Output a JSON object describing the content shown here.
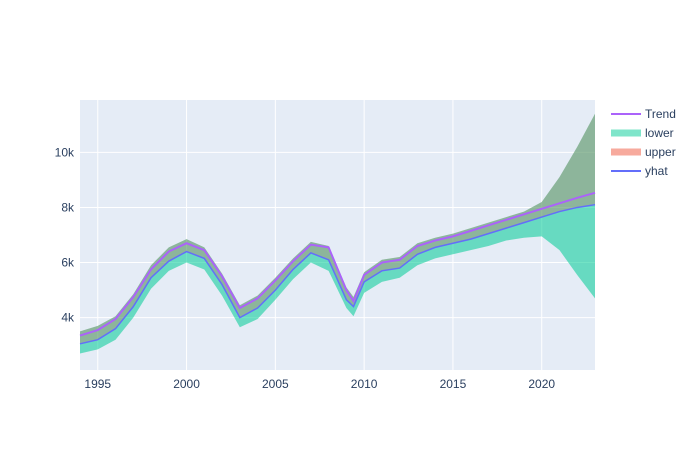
{
  "chart_data": {
    "type": "area",
    "title": "",
    "xlabel": "",
    "ylabel": "",
    "xlim": [
      1994,
      2023
    ],
    "ylim": [
      2100,
      11900
    ],
    "x_ticks": [
      1995,
      2000,
      2005,
      2010,
      2015,
      2020
    ],
    "x_tick_labels": [
      "1995",
      "2000",
      "2005",
      "2010",
      "2015",
      "2020"
    ],
    "y_ticks": [
      4000,
      6000,
      8000,
      10000
    ],
    "y_tick_labels": [
      "4k",
      "6k",
      "8k",
      "10k"
    ],
    "grid": true,
    "legend_position": "right",
    "x": [
      1994.0,
      1995.0,
      1996.0,
      1997.0,
      1998.0,
      1999.0,
      2000.0,
      2001.0,
      2002.0,
      2003.0,
      2004.0,
      2005.0,
      2006.0,
      2007.0,
      2008.0,
      2009.0,
      2009.4,
      2010.0,
      2011.0,
      2012.0,
      2013.0,
      2014.0,
      2015.0,
      2016.0,
      2017.0,
      2018.0,
      2019.0,
      2020.0,
      2021.0,
      2022.0,
      2023.0
    ],
    "series": [
      {
        "name": "Trend",
        "color": "#ab63fa",
        "values": [
          3350,
          3550,
          3950,
          4750,
          5750,
          6400,
          6700,
          6450,
          5500,
          4350,
          4700,
          5350,
          6050,
          6650,
          6550,
          5000,
          4600,
          5550,
          6000,
          6100,
          6600,
          6800,
          6950,
          7150,
          7350,
          7550,
          7750,
          7950,
          8150,
          8350,
          8530
        ]
      },
      {
        "name": "lower",
        "color": "#00cc96",
        "values": [
          2700,
          2850,
          3200,
          4000,
          5050,
          5700,
          6000,
          5750,
          4800,
          3650,
          3950,
          4650,
          5400,
          6000,
          5700,
          4350,
          4050,
          4900,
          5300,
          5450,
          5900,
          6150,
          6300,
          6450,
          6600,
          6800,
          6900,
          6950,
          6450,
          5550,
          4700
        ]
      },
      {
        "name": "upper",
        "color": "#ef553b",
        "values": [
          3500,
          3700,
          4050,
          4850,
          5900,
          6550,
          6850,
          6550,
          5600,
          4450,
          4800,
          5450,
          6150,
          6750,
          6600,
          5100,
          4750,
          5650,
          6100,
          6200,
          6700,
          6900,
          7050,
          7250,
          7450,
          7650,
          7850,
          8200,
          9100,
          10200,
          11400
        ]
      },
      {
        "name": "yhat",
        "color": "#636efa",
        "values": [
          3050,
          3200,
          3600,
          4400,
          5450,
          6050,
          6400,
          6150,
          5200,
          4000,
          4350,
          5000,
          5750,
          6350,
          6100,
          4650,
          4400,
          5300,
          5700,
          5800,
          6300,
          6550,
          6700,
          6850,
          7050,
          7250,
          7450,
          7650,
          7850,
          8000,
          8100
        ]
      }
    ]
  }
}
